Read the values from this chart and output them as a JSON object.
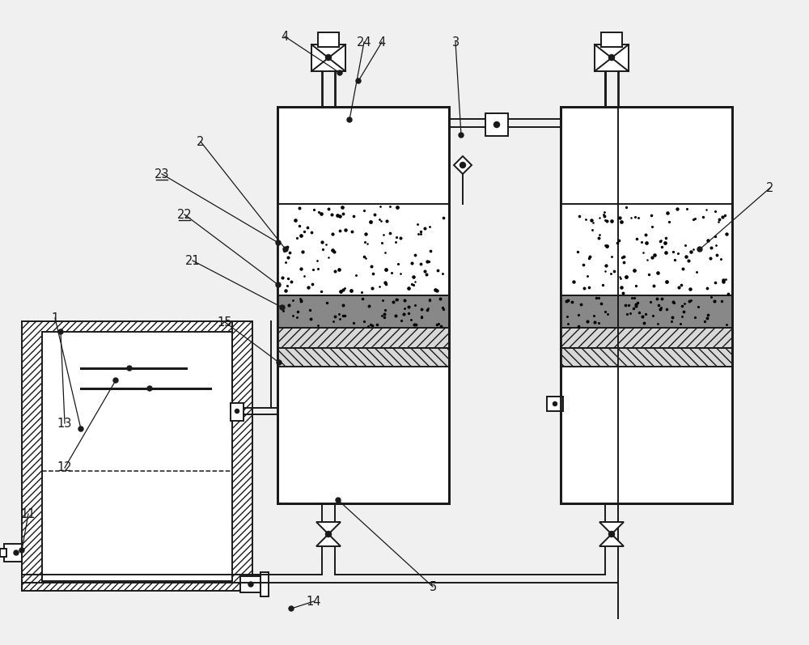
{
  "bg": "#f0f0f0",
  "lc": "#1a1a1a",
  "lw": 1.4,
  "lw2": 2.0,
  "ann": [
    [
      "1",
      68,
      393,
      100,
      530
    ],
    [
      "2",
      248,
      175,
      353,
      308
    ],
    [
      "2",
      952,
      232,
      865,
      308
    ],
    [
      "3",
      563,
      52,
      570,
      167
    ],
    [
      "4",
      352,
      45,
      420,
      90
    ],
    [
      "4",
      472,
      52,
      443,
      100
    ],
    [
      "24",
      450,
      52,
      432,
      148
    ],
    [
      "5",
      535,
      725,
      418,
      618
    ],
    [
      "11",
      35,
      635,
      27,
      680
    ],
    [
      "12",
      80,
      578,
      143,
      470
    ],
    [
      "13",
      80,
      523,
      75,
      410
    ],
    [
      "14",
      388,
      743,
      360,
      752
    ],
    [
      "15",
      278,
      398,
      345,
      448
    ],
    [
      "21",
      238,
      322,
      349,
      380
    ],
    [
      "22",
      228,
      265,
      344,
      352
    ],
    [
      "23",
      200,
      215,
      344,
      300
    ]
  ],
  "underlined": [
    14,
    15,
    16
  ]
}
